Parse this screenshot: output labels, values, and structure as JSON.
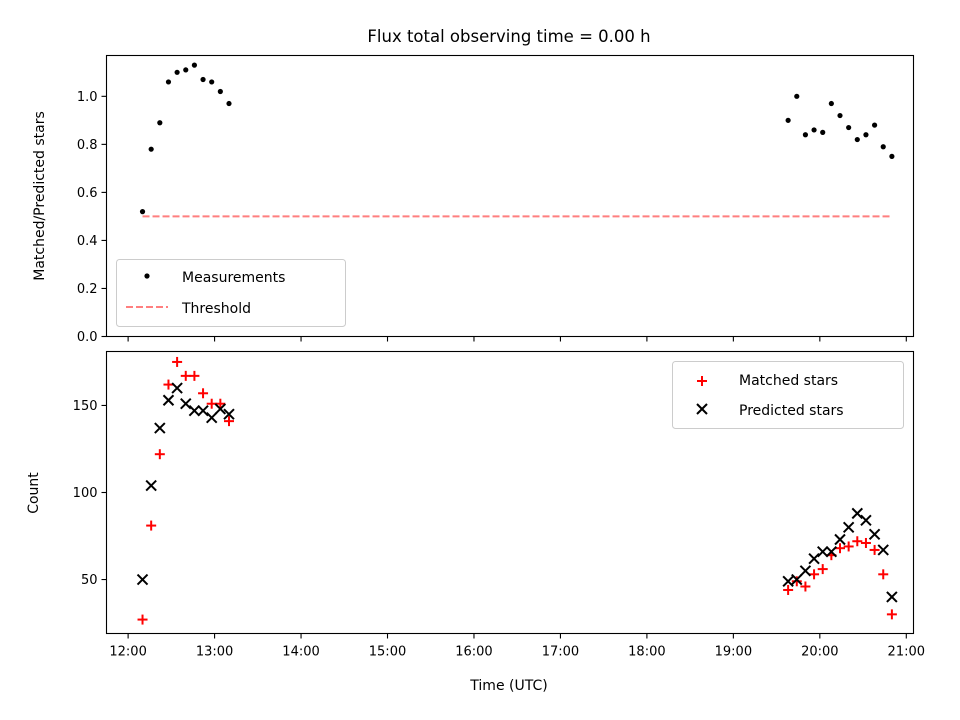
{
  "chart_data": [
    {
      "type": "scatter",
      "panel": "top",
      "title": "Flux total observing time = 0.00 h",
      "xlabel": "",
      "ylabel": "Matched/Predicted stars",
      "xlim": [
        "11:45",
        "21:05"
      ],
      "ylim": [
        0,
        1.17
      ],
      "x_ticks": [
        "12:00",
        "13:00",
        "14:00",
        "15:00",
        "16:00",
        "17:00",
        "18:00",
        "19:00",
        "20:00",
        "21:00"
      ],
      "x_tick_labels_visible": false,
      "y_ticks": [
        0.0,
        0.2,
        0.4,
        0.6,
        0.8,
        1.0
      ],
      "y_tick_labels": [
        "0.0",
        "0.2",
        "0.4",
        "0.6",
        "0.8",
        "1.0"
      ],
      "legend_position": "lower-left",
      "grid": false,
      "series": [
        {
          "name": "Measurements",
          "marker": "dot",
          "color": "#000000",
          "points": [
            {
              "x": "12:10",
              "y": 0.52
            },
            {
              "x": "12:16",
              "y": 0.78
            },
            {
              "x": "12:22",
              "y": 0.89
            },
            {
              "x": "12:28",
              "y": 1.06
            },
            {
              "x": "12:34",
              "y": 1.1
            },
            {
              "x": "12:40",
              "y": 1.11
            },
            {
              "x": "12:46",
              "y": 1.13
            },
            {
              "x": "12:52",
              "y": 1.07
            },
            {
              "x": "12:58",
              "y": 1.06
            },
            {
              "x": "13:04",
              "y": 1.02
            },
            {
              "x": "13:10",
              "y": 0.97
            },
            {
              "x": "19:38",
              "y": 0.9
            },
            {
              "x": "19:44",
              "y": 1.0
            },
            {
              "x": "19:50",
              "y": 0.84
            },
            {
              "x": "19:56",
              "y": 0.86
            },
            {
              "x": "20:02",
              "y": 0.85
            },
            {
              "x": "20:08",
              "y": 0.97
            },
            {
              "x": "20:14",
              "y": 0.92
            },
            {
              "x": "20:20",
              "y": 0.87
            },
            {
              "x": "20:26",
              "y": 0.82
            },
            {
              "x": "20:32",
              "y": 0.84
            },
            {
              "x": "20:38",
              "y": 0.88
            },
            {
              "x": "20:44",
              "y": 0.79
            },
            {
              "x": "20:50",
              "y": 0.75
            }
          ]
        },
        {
          "name": "Threshold",
          "marker": "dashed-line",
          "color": "#ff7f7f",
          "points": [
            {
              "x": "12:10",
              "y": 0.5
            },
            {
              "x": "20:50",
              "y": 0.5
            }
          ]
        }
      ]
    },
    {
      "type": "scatter",
      "panel": "bottom",
      "title": "",
      "xlabel": "Time (UTC)",
      "ylabel": "Count",
      "xlim": [
        "11:45",
        "21:05"
      ],
      "ylim": [
        19,
        181
      ],
      "x_ticks": [
        "12:00",
        "13:00",
        "14:00",
        "15:00",
        "16:00",
        "17:00",
        "18:00",
        "19:00",
        "20:00",
        "21:00"
      ],
      "x_tick_labels": [
        "12:00",
        "13:00",
        "14:00",
        "15:00",
        "16:00",
        "17:00",
        "18:00",
        "19:00",
        "20:00",
        "21:00"
      ],
      "y_ticks": [
        50,
        100,
        150
      ],
      "y_tick_labels": [
        "50",
        "100",
        "150"
      ],
      "legend_position": "upper-right",
      "grid": false,
      "series": [
        {
          "name": "Matched stars",
          "marker": "plus",
          "color": "#ff0000",
          "points": [
            {
              "x": "12:10",
              "y": 27
            },
            {
              "x": "12:16",
              "y": 81
            },
            {
              "x": "12:22",
              "y": 122
            },
            {
              "x": "12:28",
              "y": 162
            },
            {
              "x": "12:34",
              "y": 175
            },
            {
              "x": "12:40",
              "y": 167
            },
            {
              "x": "12:46",
              "y": 167
            },
            {
              "x": "12:52",
              "y": 157
            },
            {
              "x": "12:58",
              "y": 151
            },
            {
              "x": "13:04",
              "y": 151
            },
            {
              "x": "13:10",
              "y": 141
            },
            {
              "x": "19:38",
              "y": 44
            },
            {
              "x": "19:44",
              "y": 49
            },
            {
              "x": "19:50",
              "y": 46
            },
            {
              "x": "19:56",
              "y": 53
            },
            {
              "x": "20:02",
              "y": 56
            },
            {
              "x": "20:08",
              "y": 64
            },
            {
              "x": "20:14",
              "y": 68
            },
            {
              "x": "20:20",
              "y": 69
            },
            {
              "x": "20:26",
              "y": 72
            },
            {
              "x": "20:32",
              "y": 71
            },
            {
              "x": "20:38",
              "y": 67
            },
            {
              "x": "20:44",
              "y": 53
            },
            {
              "x": "20:50",
              "y": 30
            }
          ]
        },
        {
          "name": "Predicted stars",
          "marker": "x",
          "color": "#000000",
          "points": [
            {
              "x": "12:10",
              "y": 50
            },
            {
              "x": "12:16",
              "y": 104
            },
            {
              "x": "12:22",
              "y": 137
            },
            {
              "x": "12:28",
              "y": 153
            },
            {
              "x": "12:34",
              "y": 160
            },
            {
              "x": "12:40",
              "y": 151
            },
            {
              "x": "12:46",
              "y": 147
            },
            {
              "x": "12:52",
              "y": 147
            },
            {
              "x": "12:58",
              "y": 143
            },
            {
              "x": "13:04",
              "y": 148
            },
            {
              "x": "13:10",
              "y": 145
            },
            {
              "x": "19:38",
              "y": 49
            },
            {
              "x": "19:44",
              "y": 50
            },
            {
              "x": "19:50",
              "y": 55
            },
            {
              "x": "19:56",
              "y": 62
            },
            {
              "x": "20:02",
              "y": 66
            },
            {
              "x": "20:08",
              "y": 66
            },
            {
              "x": "20:14",
              "y": 73
            },
            {
              "x": "20:20",
              "y": 80
            },
            {
              "x": "20:26",
              "y": 88
            },
            {
              "x": "20:32",
              "y": 84
            },
            {
              "x": "20:38",
              "y": 76
            },
            {
              "x": "20:44",
              "y": 67
            },
            {
              "x": "20:50",
              "y": 40
            }
          ]
        }
      ]
    }
  ]
}
